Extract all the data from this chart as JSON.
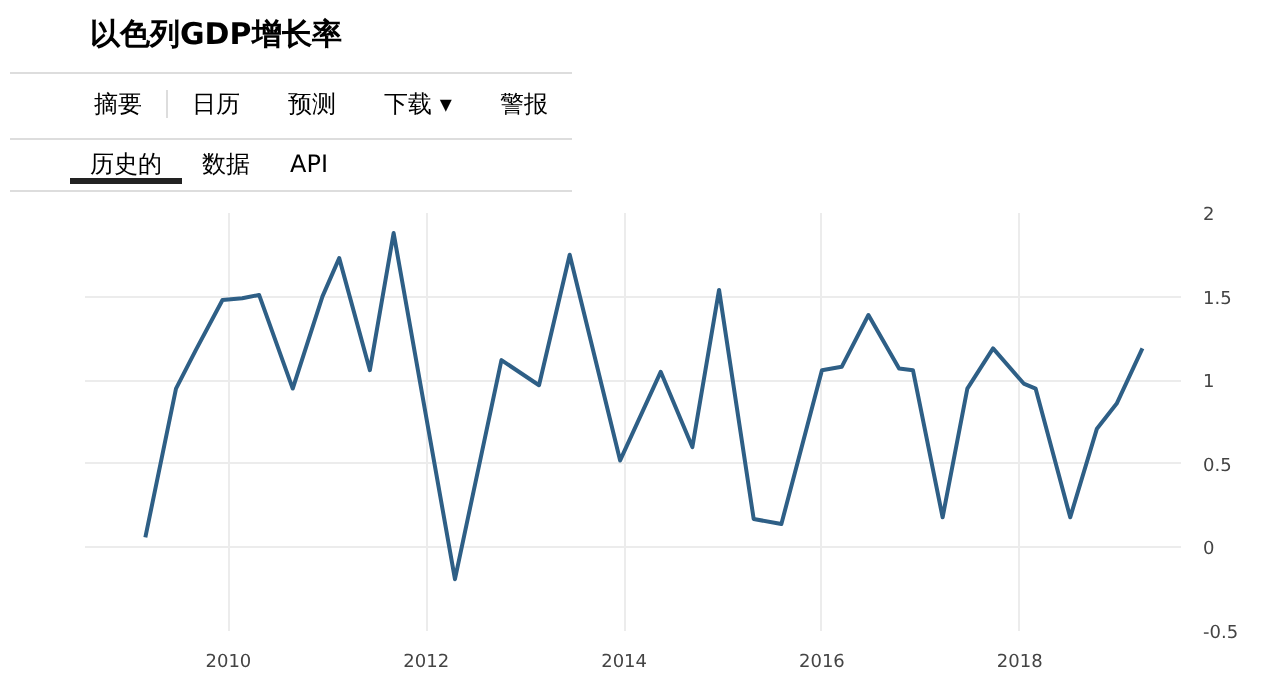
{
  "chart_data": {
    "type": "line",
    "title": "以色列GDP增长率",
    "annotations": [
      "摘要",
      "日历",
      "预测",
      "下载 ▾",
      "警报",
      "历史的",
      "数据",
      "API"
    ],
    "x": [
      2009.16,
      2009.47,
      2009.67,
      2009.94,
      2010.14,
      2010.31,
      2010.65,
      2010.95,
      2011.12,
      2011.43,
      2011.67,
      2012.29,
      2012.76,
      2013.14,
      2013.45,
      2013.96,
      2014.37,
      2014.69,
      2014.96,
      2015.31,
      2015.59,
      2016.0,
      2016.2,
      2016.47,
      2016.78,
      2016.92,
      2017.22,
      2017.47,
      2017.73,
      2018.04,
      2018.16,
      2018.51,
      2018.78,
      2018.98,
      2019.24
    ],
    "series": [
      {
        "color": "#2e5f86",
        "values": [
          0.06,
          0.95,
          1.18,
          1.48,
          1.49,
          1.51,
          0.95,
          1.5,
          1.73,
          1.06,
          1.88,
          -0.19,
          1.12,
          0.97,
          1.75,
          0.52,
          1.05,
          0.6,
          1.54,
          0.17,
          0.14,
          1.06,
          1.08,
          1.39,
          1.07,
          1.06,
          0.18,
          0.95,
          1.19,
          0.98,
          0.95,
          0.18,
          0.71,
          0.86,
          1.19
        ]
      }
    ],
    "xlim": [
      2008.55,
      2019.63
    ],
    "ylim": [
      -0.5,
      2
    ],
    "xticks": [
      2010,
      2012,
      2014,
      2016,
      2018
    ],
    "yticks": [
      -0.5,
      0,
      0.5,
      1,
      1.5,
      2
    ],
    "grid": true,
    "marker": "none",
    "line_style": "solid"
  }
}
